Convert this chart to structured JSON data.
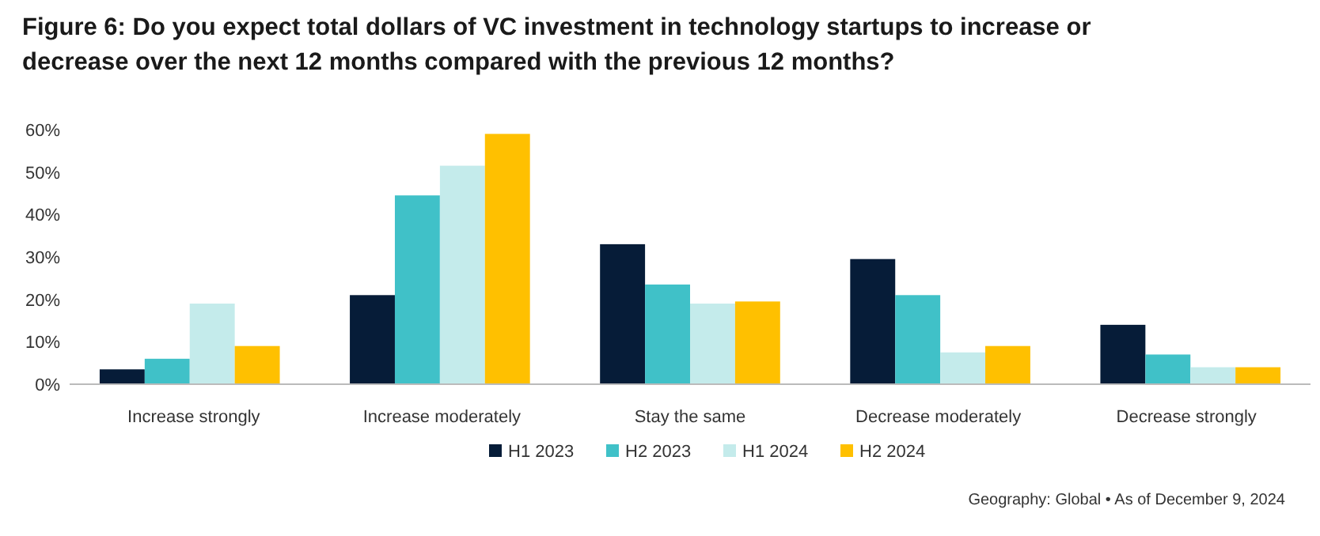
{
  "chart_data": {
    "type": "bar",
    "title": "Figure 6: Do you expect total dollars of VC investment in technology startups to increase or decrease over the next 12 months compared with the previous 12 months?",
    "categories": [
      "Increase strongly",
      "Increase moderately",
      "Stay the same",
      "Decrease moderately",
      "Decrease strongly"
    ],
    "series": [
      {
        "name": "H1 2023",
        "color": "#061c38",
        "values": [
          3.5,
          21,
          33,
          29.5,
          14
        ]
      },
      {
        "name": "H2 2023",
        "color": "#40c1c8",
        "values": [
          6,
          44.5,
          23.5,
          21,
          7
        ]
      },
      {
        "name": "H1 2024",
        "color": "#c4ebeb",
        "values": [
          19,
          51.5,
          19,
          7.5,
          4
        ]
      },
      {
        "name": "H2 2024",
        "color": "#ffc000",
        "values": [
          9,
          59,
          19.5,
          9,
          4
        ]
      }
    ],
    "ylim": [
      0,
      60
    ],
    "yticks": [
      {
        "value": 0,
        "label": "0%"
      },
      {
        "value": 10,
        "label": "10%"
      },
      {
        "value": 20,
        "label": "20%"
      },
      {
        "value": 30,
        "label": "30%"
      },
      {
        "value": 40,
        "label": "40%"
      },
      {
        "value": 50,
        "label": "50%"
      },
      {
        "value": 60,
        "label": "60%"
      }
    ],
    "legend": "bottom",
    "annotations": [
      "Geography: Global • As of December 9, 2024"
    ]
  }
}
